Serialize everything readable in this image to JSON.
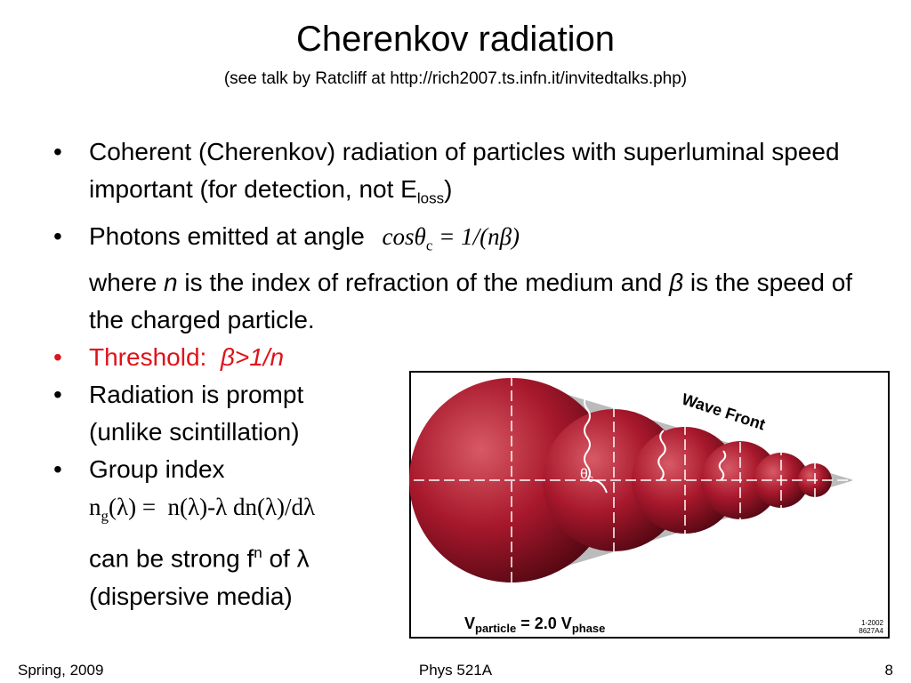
{
  "title": "Cherenkov radiation",
  "subtitle": "(see talk by Ratcliff at http://rich2007.ts.infn.it/invitedtalks.php)",
  "bullets": [
    {
      "text": "Coherent (Cherenkov) radiation of particles with superluminal speed important (for detection, not E",
      "sub": "loss",
      "end": ")"
    },
    {
      "text": "Photons emitted at angle",
      "formula": {
        "main": "cosθ",
        "sub": "c",
        "rest": "= 1/(nβ)"
      },
      "where": "where ",
      "n": "n",
      "mid": " is the index of refraction of the medium and ",
      "beta": "β",
      "end": " is the speed of the charged particle."
    },
    {
      "label": "Threshold:",
      "expr": "β>1/n"
    },
    {
      "lines": [
        "Radiation is prompt",
        "(unlike scintillation)"
      ]
    },
    {
      "text": "Group index",
      "formula": {
        "main": "n",
        "sub": "g",
        "rest": "(λ) =  n(λ)-λ dn(λ)/dλ"
      },
      "line2": "can be strong f",
      "sup": "n",
      "line2end": " of λ",
      "line3": "(dispersive media)"
    }
  ],
  "figure": {
    "wave_front": "Wave Front",
    "angle": "θ",
    "angle_sub": "c",
    "v1": "V",
    "v1_sub": "particle",
    "v_eq": " = 2.0 V",
    "v2_sub": "phase",
    "code1": "1-2002",
    "code2": "8627A4"
  },
  "footer": {
    "left": "Spring, 2009",
    "center": "Phys 521A",
    "right": "8"
  }
}
